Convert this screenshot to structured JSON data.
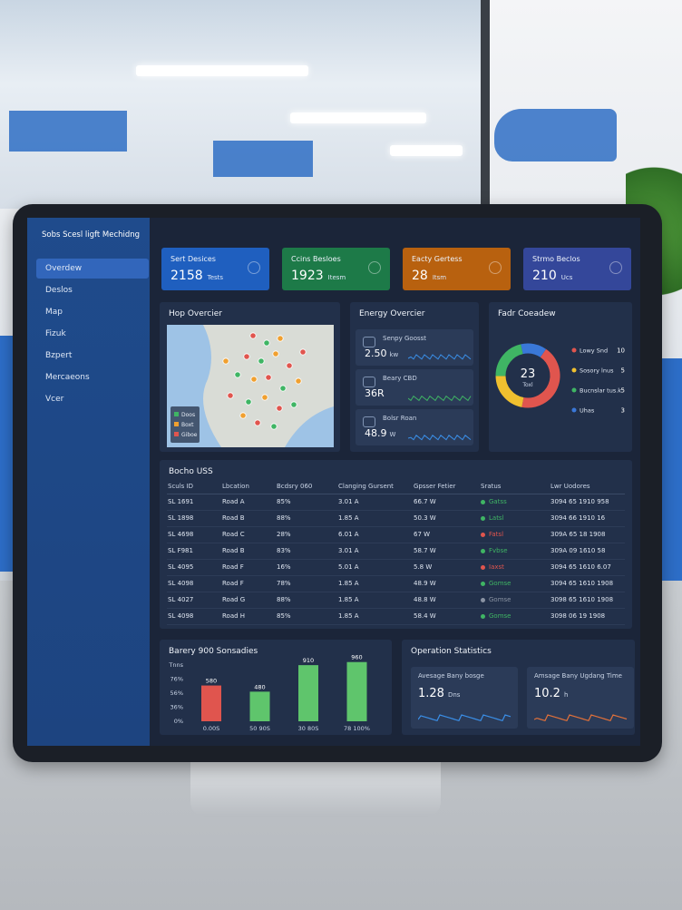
{
  "sidebar": {
    "title": "Sobs Scesl ligft Mechidng",
    "menu": [
      "Overdew",
      "Deslos",
      "Map",
      "Fizuk",
      "Bzpert",
      "Mercaeons",
      "Vcer"
    ]
  },
  "kpis": [
    {
      "label": "Sert Desices",
      "value": "2158",
      "unit": "Tests",
      "color": "#1f5fbf"
    },
    {
      "label": "Ccins Besloes",
      "value": "1923",
      "unit": "Itesm",
      "color": "#1d7a48"
    },
    {
      "label": "Eacty Gertess",
      "value": "28",
      "unit": "Itsm",
      "color": "#b8610f"
    },
    {
      "label": "Strmo Beclos",
      "value": "210",
      "unit": "Ucs",
      "color": "#34479a"
    }
  ],
  "map": {
    "title": "Hop Overcier",
    "legend": [
      "Doos",
      "Boxt",
      "Giboe"
    ]
  },
  "energy": {
    "title": "Energy Overcier",
    "items": [
      {
        "label": "Senpy Goosst",
        "value": "2.50",
        "unit": "kw"
      },
      {
        "label": "Beary CBD",
        "value": "36R",
        "unit": ""
      },
      {
        "label": "Bolsr Roan",
        "value": "48.9",
        "unit": "W"
      }
    ]
  },
  "fault": {
    "title": "Fadr Coeadew",
    "total": "23",
    "total_label": "Toxl",
    "items": [
      {
        "name": "Lowy Snd",
        "value": 10,
        "color": "#e0554e"
      },
      {
        "name": "Sosory lnus",
        "value": 5,
        "color": "#f0c02f"
      },
      {
        "name": "Bucnslar tus.k",
        "value": 5,
        "color": "#3fb564"
      },
      {
        "name": "Uhas",
        "value": 3,
        "color": "#3a78d8"
      }
    ]
  },
  "table": {
    "title": "Bocho USS",
    "headers": [
      "Sculs ID",
      "Lbcation",
      "Bcdsry 060",
      "Clanging Gursent",
      "Gpsser Fetier",
      "Sratus",
      "Lwr Uodores"
    ],
    "rows": [
      [
        "SL 1691",
        "Road A",
        "85%",
        "3.01 A",
        "66.7 W",
        "Gatss",
        "3094 65 1910 958"
      ],
      [
        "SL 1898",
        "Road B",
        "88%",
        "1.85 A",
        "50.3 W",
        "Latsl",
        "3094 66 1910 16"
      ],
      [
        "SL 4698",
        "Road C",
        "28%",
        "6.01 A",
        "67 W",
        "Fatsl",
        "309A 65 18 1908"
      ],
      [
        "SL F981",
        "Road B",
        "83%",
        "3.01 A",
        "58.7 W",
        "Fvbse",
        "309A 09 1610 58"
      ],
      [
        "SL 4095",
        "Road F",
        "16%",
        "5.01 A",
        "5.8 W",
        "Iaxst",
        "3094 65 1610 6.07"
      ],
      [
        "SL 4098",
        "Road F",
        "78%",
        "1.85 A",
        "48.9 W",
        "Gomse",
        "3094 65 1610 1908"
      ],
      [
        "SL 4027",
        "Road G",
        "88%",
        "1.85 A",
        "48.8 W",
        "Gomse",
        "3098 65 1610 1908"
      ],
      [
        "SL 4098",
        "Road H",
        "85%",
        "1.85 A",
        "58.4 W",
        "Gomse",
        "3098 06 19 1908"
      ]
    ],
    "status_colors": [
      "#3fb564",
      "#3fb564",
      "#e0554e",
      "#3fb564",
      "#e0554e",
      "#3fb564",
      "#8a93a3",
      "#3fb564"
    ]
  },
  "bars": {
    "title": "Barery 900 Sonsadies",
    "axis_labels": [
      "Tnns",
      "76%",
      "56%",
      "36%",
      "0%"
    ],
    "categories": [
      "0.00S",
      "50 90S",
      "30 80S",
      "78 100%"
    ],
    "values": [
      580,
      480,
      910,
      960
    ],
    "colors": [
      "#e0554e",
      "#5fc56c",
      "#5fc56c",
      "#5fc56c"
    ],
    "ylim": [
      0,
      1000
    ]
  },
  "ops": {
    "title": "Operation Statistics",
    "items": [
      {
        "label": "Avesage Bany bosge",
        "value": "1.28",
        "unit": "Dns"
      },
      {
        "label": "Amsage Bany Ugdang Time",
        "value": "10.2",
        "unit": "h"
      }
    ]
  }
}
